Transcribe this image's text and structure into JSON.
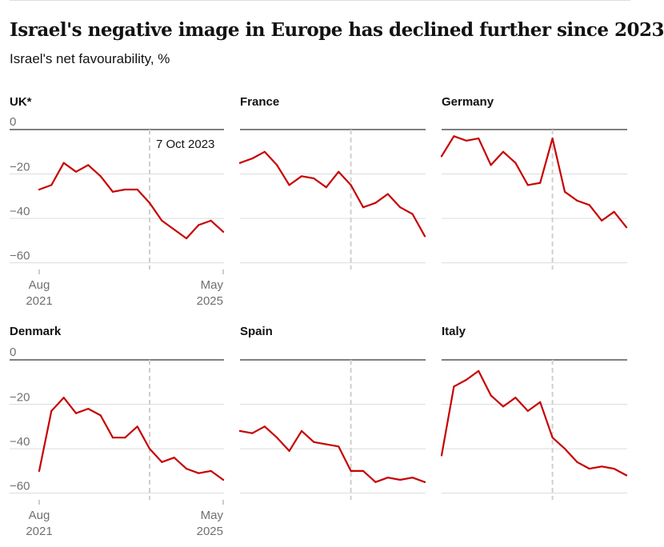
{
  "title": "Israel's negative image in Europe has declined further since 2023",
  "subtitle": "Israel's net favourability, %",
  "chart_data": {
    "type": "line",
    "layout": "small-multiples",
    "ylim": [
      -63,
      0
    ],
    "yticks": [
      0,
      -20,
      -40,
      -60
    ],
    "x_range": [
      "Aug 2021",
      "May 2025"
    ],
    "xtick_labels": [
      {
        "month": "Aug",
        "year": "2021"
      },
      {
        "month": "May",
        "year": "2025"
      }
    ],
    "annotation": {
      "label": "7 Oct 2023",
      "x_fraction": 0.6
    },
    "line_color": "#c70000",
    "panels": [
      {
        "name": "UK*",
        "values": [
          -27,
          -25,
          -15,
          -19,
          -16,
          -21,
          -28,
          -27,
          -27,
          -33,
          -41,
          -45,
          -49,
          -43,
          -41,
          -46
        ]
      },
      {
        "name": "France",
        "values": [
          -15,
          -13,
          -10,
          -16,
          -25,
          -21,
          -22,
          -26,
          -19,
          -25,
          -35,
          -33,
          -29,
          -35,
          -38,
          -48
        ]
      },
      {
        "name": "Germany",
        "values": [
          -12,
          -3,
          -5,
          -4,
          -16,
          -10,
          -15,
          -25,
          -24,
          -4,
          -28,
          -32,
          -34,
          -41,
          -37,
          -44
        ]
      },
      {
        "name": "Denmark",
        "values": [
          -50,
          -23,
          -17,
          -24,
          -22,
          -25,
          -35,
          -35,
          -30,
          -40,
          -46,
          -44,
          -49,
          -51,
          -50,
          -54
        ]
      },
      {
        "name": "Spain",
        "values": [
          -32,
          -33,
          -30,
          -35,
          -41,
          -32,
          -37,
          -38,
          -39,
          -50,
          -50,
          -55,
          -53,
          -54,
          -53,
          -55
        ]
      },
      {
        "name": "Italy",
        "values": [
          -43,
          -12,
          -9,
          -5,
          -16,
          -21,
          -17,
          -23,
          -19,
          -35,
          -40,
          -46,
          -49,
          -48,
          -49,
          -52
        ]
      }
    ]
  }
}
